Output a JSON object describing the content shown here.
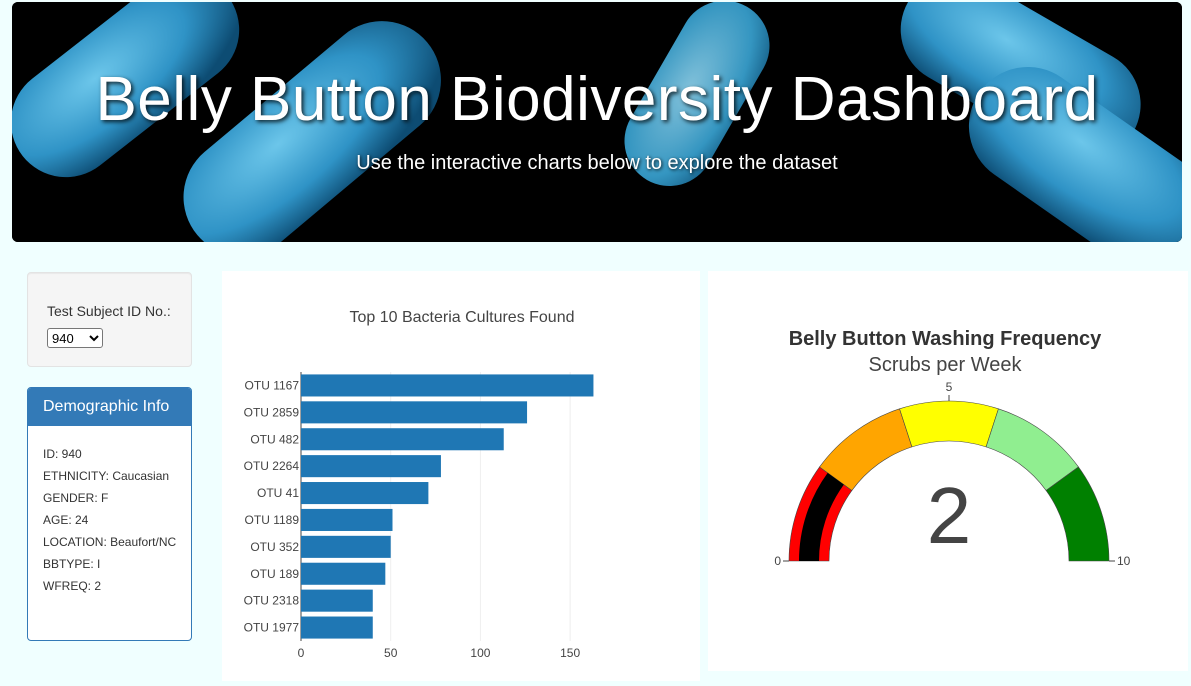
{
  "header": {
    "title": "Belly Button Biodiversity Dashboard",
    "subtitle": "Use the interactive charts below to explore the dataset"
  },
  "selector": {
    "label": "Test Subject ID No.:",
    "selected": "940"
  },
  "demographics": {
    "title": "Demographic Info",
    "items": [
      "ID: 940",
      "ETHNICITY: Caucasian",
      "GENDER: F",
      "AGE: 24",
      "LOCATION: Beaufort/NC",
      "BBTYPE: I",
      "WFREQ: 2"
    ]
  },
  "chart_data": [
    {
      "type": "bar",
      "orientation": "horizontal",
      "title": "Top 10 Bacteria Cultures Found",
      "categories": [
        "OTU 1167",
        "OTU 2859",
        "OTU 482",
        "OTU 2264",
        "OTU 41",
        "OTU 1189",
        "OTU 352",
        "OTU 189",
        "OTU 2318",
        "OTU 1977"
      ],
      "values": [
        163,
        126,
        113,
        78,
        71,
        51,
        50,
        47,
        40,
        40
      ],
      "xlim": [
        0,
        170
      ],
      "xticks": [
        0,
        50,
        100,
        150
      ],
      "color": "#1f77b4",
      "grid": true
    },
    {
      "type": "gauge",
      "title": "Belly Button Washing Frequency",
      "subtitle": "Scrubs per Week",
      "value": 2,
      "range": [
        0,
        10
      ],
      "tick_labels": [
        "0",
        "5",
        "10"
      ],
      "bands": [
        {
          "from": 0,
          "to": 2,
          "color": "#ff0000"
        },
        {
          "from": 2,
          "to": 4,
          "color": "#ffa500"
        },
        {
          "from": 4,
          "to": 6,
          "color": "#ffff00"
        },
        {
          "from": 6,
          "to": 8,
          "color": "#90ee90"
        },
        {
          "from": 8,
          "to": 10,
          "color": "#008000"
        }
      ],
      "bar_color": "#000000"
    }
  ]
}
